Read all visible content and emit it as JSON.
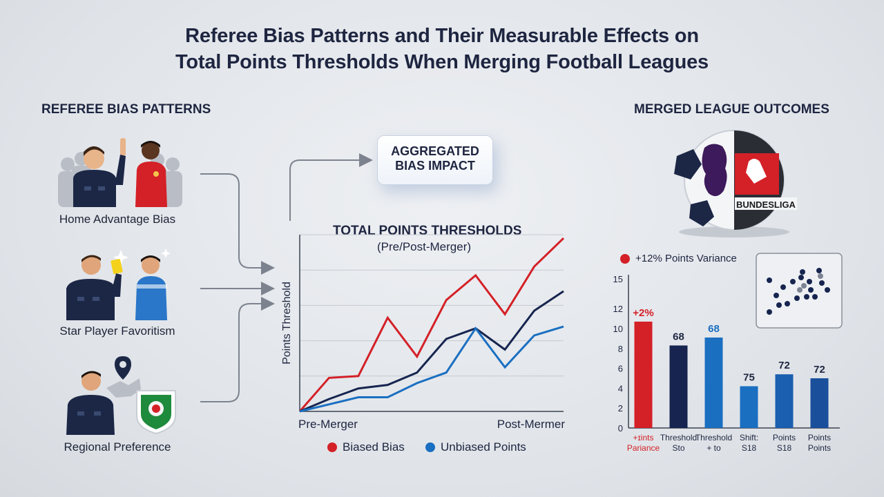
{
  "title": {
    "line1": "Referee Bias Patterns and Their Measurable Effects on",
    "line2": "Total Points Thresholds When Merging Football Leagues"
  },
  "left_panel": {
    "heading": "REFEREE BIAS PATTERNS",
    "items": [
      {
        "label": "Home Advantage Bias",
        "icon": "referee-home-crowd-icon"
      },
      {
        "label": "Star Player Favoritism",
        "icon": "referee-yellow-card-icon"
      },
      {
        "label": "Regional Preference",
        "icon": "referee-location-pin-icon"
      }
    ]
  },
  "aggregate_box": {
    "line1": "AGGREGATED",
    "line2": "BIAS IMPACT"
  },
  "right_panel": {
    "heading": "MERGED LEAGUE OUTCOMES",
    "ball_text": "BUNDESLIGA",
    "legend_label": "+12% Points Variance"
  },
  "colors": {
    "red": "#d42027",
    "navy": "#16244f",
    "blue": "#1a6fc1",
    "title": "#1e2540"
  },
  "chart_data": [
    {
      "type": "line",
      "title": "TOTAL POINTS THRESHOLDS",
      "subtitle": "(Pre/Post-Merger)",
      "ylabel": "Points Threshold",
      "x_labels": [
        "Pre-Merger",
        "Post-Mermer"
      ],
      "x": [
        0,
        1,
        2,
        3,
        4,
        5,
        6,
        7,
        8,
        9
      ],
      "ylim": [
        0,
        10
      ],
      "legend": [
        {
          "name": "Biased Bias",
          "color": "#d42027"
        },
        {
          "name": "Unbiased Points",
          "color": "#1a6fc1"
        }
      ],
      "series": [
        {
          "name": "Biased Bias",
          "color": "#d42027",
          "values": [
            0,
            1.9,
            2.0,
            5.3,
            3.1,
            6.3,
            7.7,
            5.5,
            8.2,
            9.8
          ]
        },
        {
          "name": "",
          "color": "#16244f",
          "values": [
            0,
            0.7,
            1.3,
            1.5,
            2.2,
            4.1,
            4.7,
            3.5,
            5.7,
            6.8
          ]
        },
        {
          "name": "Unbiased Points",
          "color": "#1a6fc1",
          "values": [
            0,
            0.4,
            0.8,
            0.8,
            1.6,
            2.2,
            4.7,
            2.5,
            4.3,
            4.8
          ]
        }
      ]
    },
    {
      "type": "bar",
      "ylim": [
        0,
        15
      ],
      "yticks": [
        0,
        2,
        4,
        6,
        8,
        10,
        12,
        15
      ],
      "legend": [
        {
          "name": "+12% Points Variance",
          "color": "#d42027"
        }
      ],
      "bars": [
        {
          "value": 10.7,
          "label": "+2%",
          "cat1": "+ɪints",
          "cat2": "Pariance",
          "color": "#d42027",
          "label_color": "#d42027",
          "cat_color": "#d42027"
        },
        {
          "value": 8.3,
          "label": "68",
          "cat1": "Threshold",
          "cat2": "Sto",
          "color": "#16244f",
          "label_color": "#1e2540",
          "cat_color": "#1e2540"
        },
        {
          "value": 9.1,
          "label": "68",
          "cat1": "Threshold",
          "cat2": "+ to",
          "color": "#1a6fc1",
          "label_color": "#1a6fc1",
          "cat_color": "#1e2540"
        },
        {
          "value": 4.2,
          "label": "75",
          "cat1": "Shift:",
          "cat2": "S18",
          "color": "#1a6fc1",
          "label_color": "#1e2540",
          "cat_color": "#1e2540"
        },
        {
          "value": 5.4,
          "label": "72",
          "cat1": "Points",
          "cat2": "S18",
          "color": "#1a5fb0",
          "label_color": "#1e2540",
          "cat_color": "#1e2540"
        },
        {
          "value": 5.0,
          "label": "72",
          "cat1": "Points",
          "cat2": "Points",
          "color": "#1a4f9c",
          "label_color": "#1e2540",
          "cat_color": "#1e2540"
        }
      ]
    }
  ]
}
